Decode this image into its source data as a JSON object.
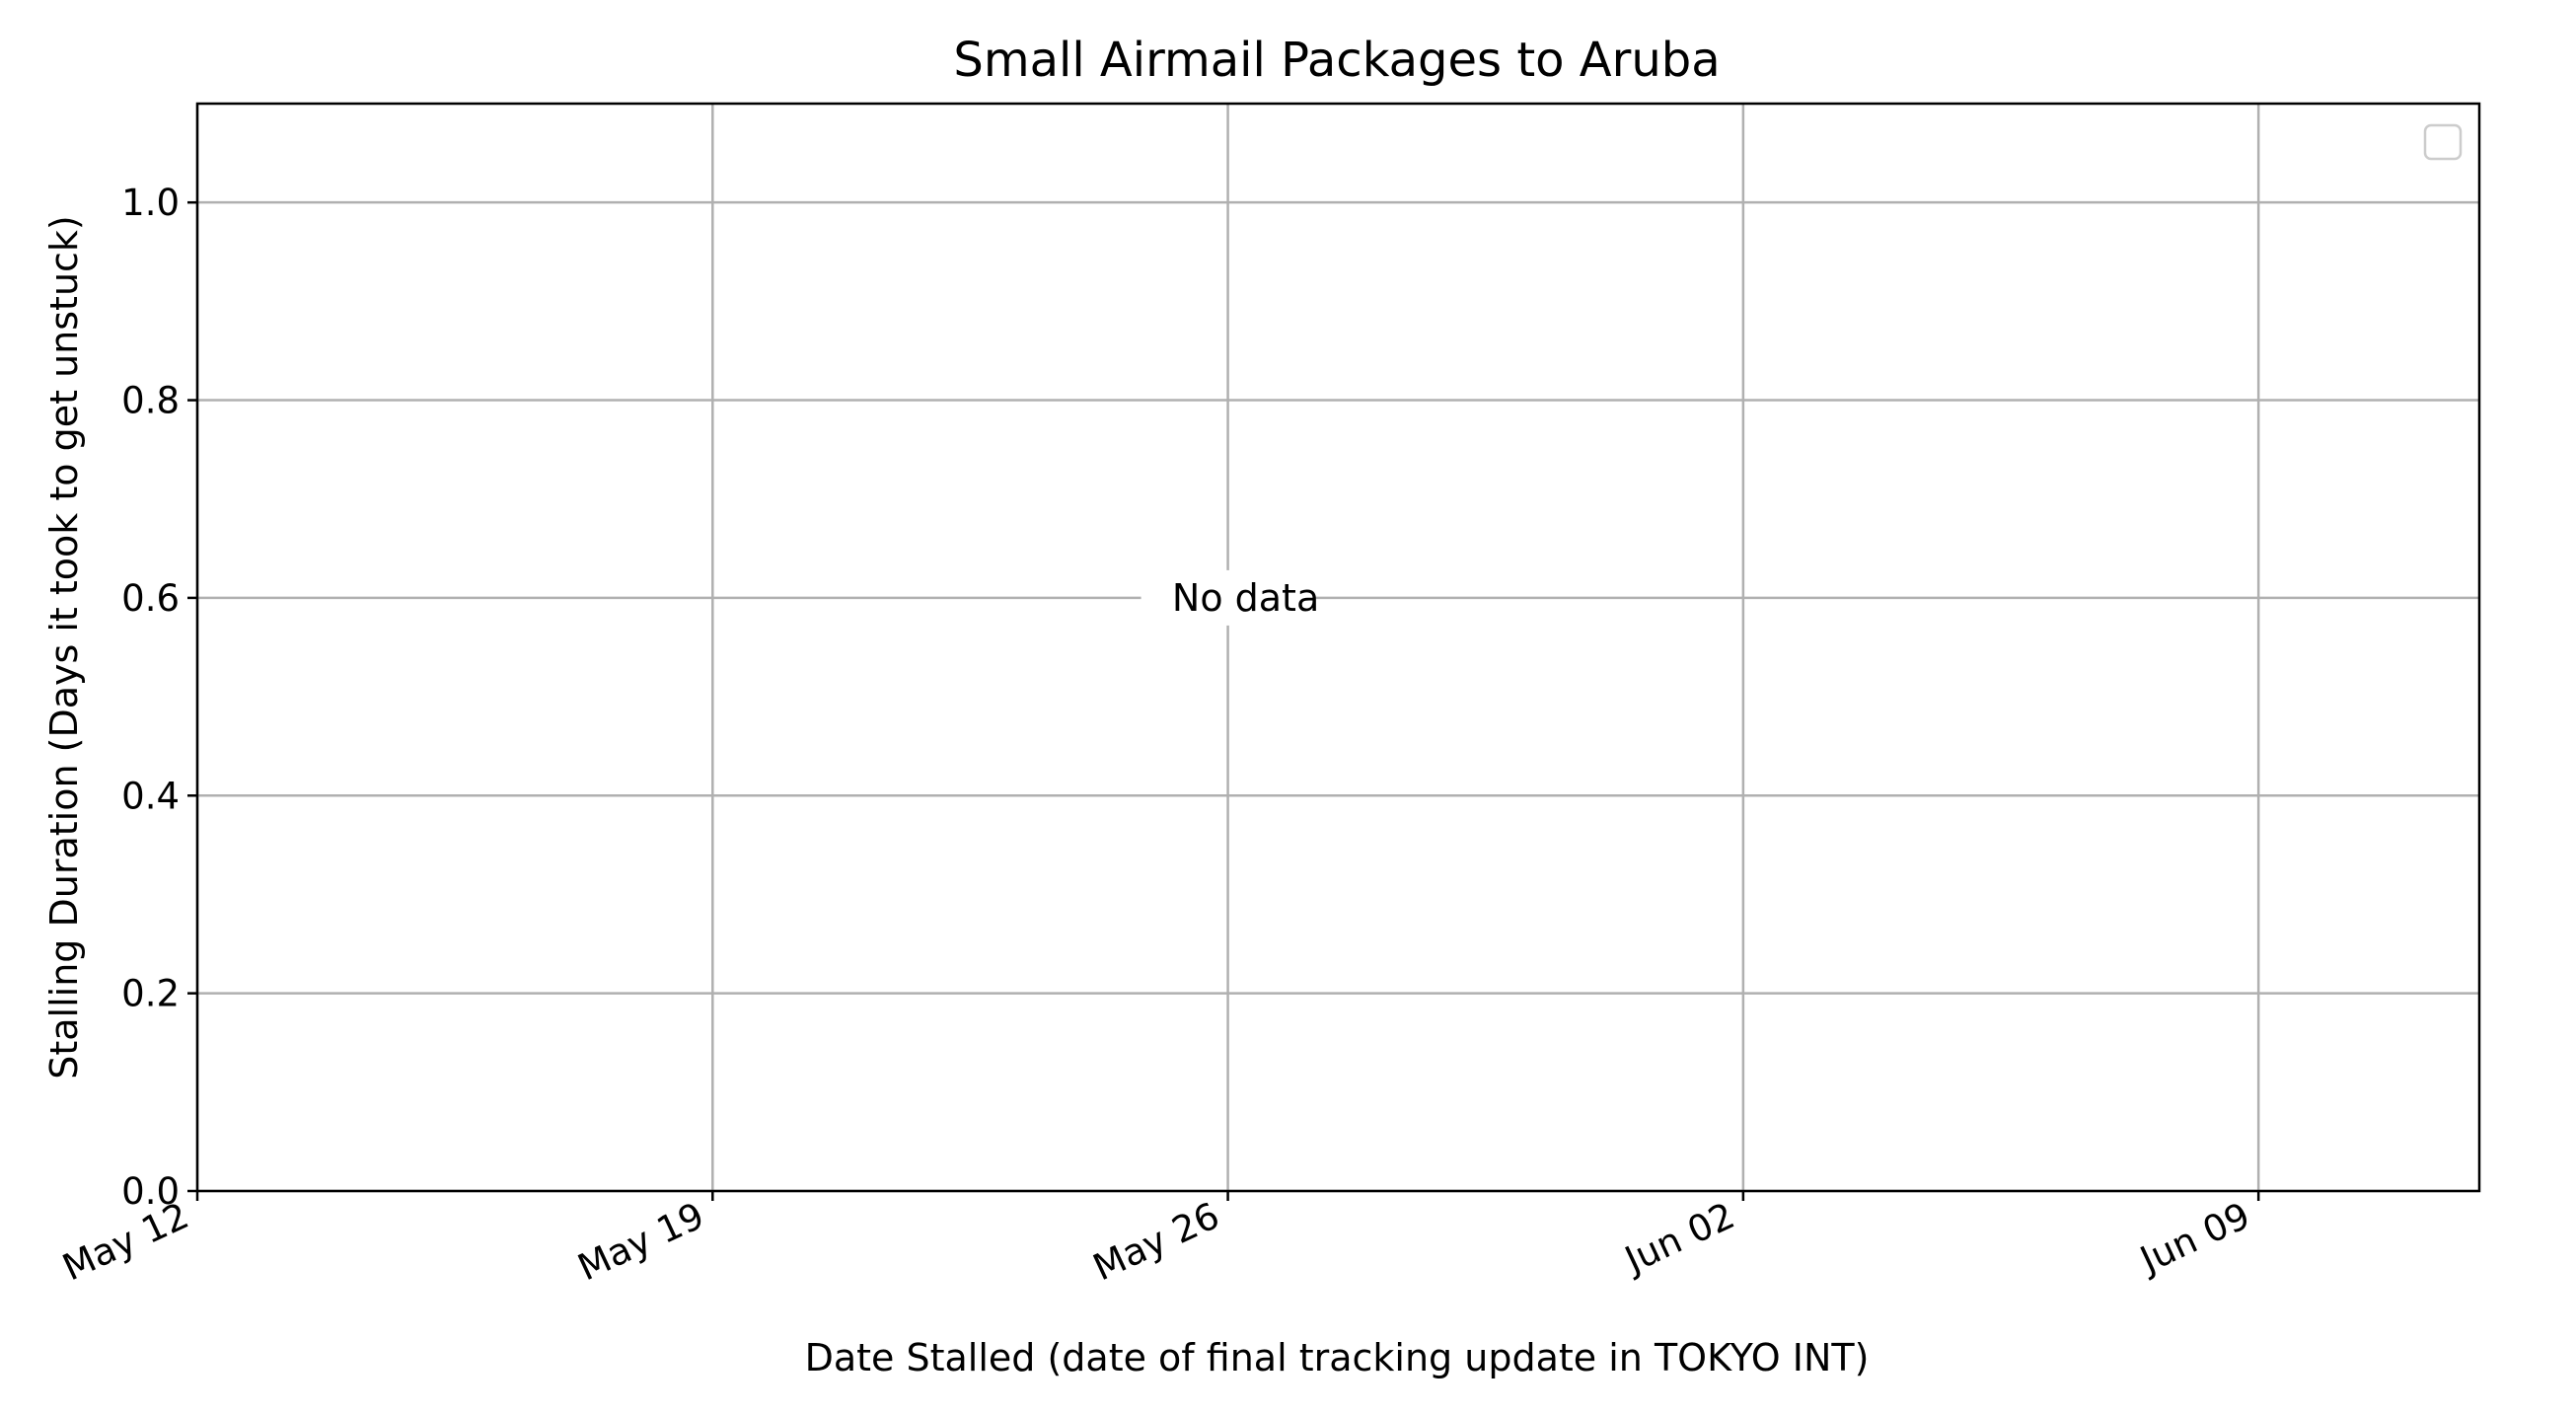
{
  "chart_data": {
    "type": "scatter",
    "title": "Small Airmail Packages to Aruba",
    "xlabel": "Date Stalled (date of final tracking update in TOKYO INT)",
    "ylabel": "Stalling Duration (Days it took to get unstuck)",
    "x_axis": {
      "type": "date",
      "range": [
        "2024-05-12",
        "2024-06-12"
      ],
      "ticks": [
        {
          "value": "2024-05-12",
          "label": "May 12"
        },
        {
          "value": "2024-05-19",
          "label": "May 19"
        },
        {
          "value": "2024-05-26",
          "label": "May 26"
        },
        {
          "value": "2024-06-02",
          "label": "Jun 02"
        },
        {
          "value": "2024-06-09",
          "label": "Jun 09"
        }
      ]
    },
    "y_axis": {
      "range": [
        0,
        1.1
      ],
      "ticks": [
        {
          "value": 0.0,
          "label": "0.0"
        },
        {
          "value": 0.2,
          "label": "0.2"
        },
        {
          "value": 0.4,
          "label": "0.4"
        },
        {
          "value": 0.6,
          "label": "0.6"
        },
        {
          "value": 0.8,
          "label": "0.8"
        },
        {
          "value": 1.0,
          "label": "1.0"
        }
      ]
    },
    "grid": true,
    "legend": {
      "placement": "upper-right",
      "entries": []
    },
    "series": [],
    "annotations": [
      {
        "text": "No data",
        "x": "2024-05-26",
        "y": 0.6
      }
    ],
    "colors": {
      "grid": "#b0b0b0",
      "axes": "#000000",
      "legend_border": "#cccccc"
    }
  }
}
